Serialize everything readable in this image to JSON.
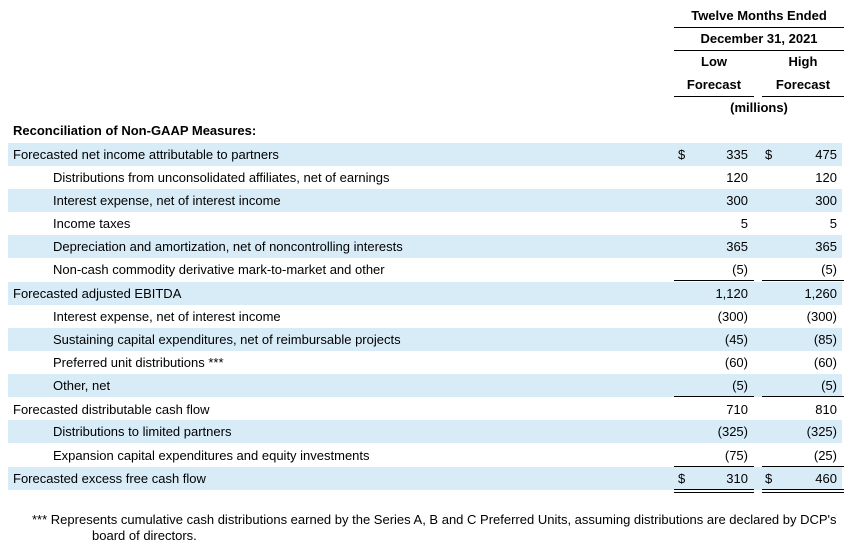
{
  "header": {
    "period_line1": "Twelve Months Ended",
    "period_line2": "December 31, 2021",
    "low_line1": "Low",
    "low_line2": "Forecast",
    "high_line1": "High",
    "high_line2": "Forecast",
    "units": "(millions)"
  },
  "section_title": "Reconciliation of Non-GAAP Measures:",
  "currency_symbol": "$",
  "rows": [
    {
      "label": "Forecasted net income attributable to partners",
      "low": "335",
      "high": "475"
    },
    {
      "label": "Distributions from unconsolidated affiliates, net of earnings",
      "low": "120",
      "high": "120"
    },
    {
      "label": "Interest expense, net of interest income",
      "low": "300",
      "high": "300"
    },
    {
      "label": "Income taxes",
      "low": "5",
      "high": "5"
    },
    {
      "label": "Depreciation and amortization, net of noncontrolling interests",
      "low": "365",
      "high": "365"
    },
    {
      "label": "Non-cash commodity derivative mark-to-market and other",
      "low": "(5)",
      "high": "(5)"
    },
    {
      "label": "Forecasted adjusted EBITDA",
      "low": "1,120",
      "high": "1,260"
    },
    {
      "label": "Interest expense, net of interest income",
      "low": "(300)",
      "high": "(300)"
    },
    {
      "label": "Sustaining capital expenditures, net of reimbursable projects",
      "low": "(45)",
      "high": "(85)"
    },
    {
      "label": "Preferred unit distributions ***",
      "low": "(60)",
      "high": "(60)"
    },
    {
      "label": "Other, net",
      "low": "(5)",
      "high": "(5)"
    },
    {
      "label": "Forecasted distributable cash flow",
      "low": "710",
      "high": "810"
    },
    {
      "label": "Distributions to limited partners",
      "low": "(325)",
      "high": "(325)"
    },
    {
      "label": "Expansion capital expenditures and equity investments",
      "low": "(75)",
      "high": "(25)"
    },
    {
      "label": "Forecasted excess free cash flow",
      "low": "310",
      "high": "460"
    }
  ],
  "footnote": {
    "line1": "*** Represents cumulative cash distributions earned by the Series A, B and C Preferred Units, assuming distributions are declared by DCP's",
    "line2": "board of directors."
  }
}
